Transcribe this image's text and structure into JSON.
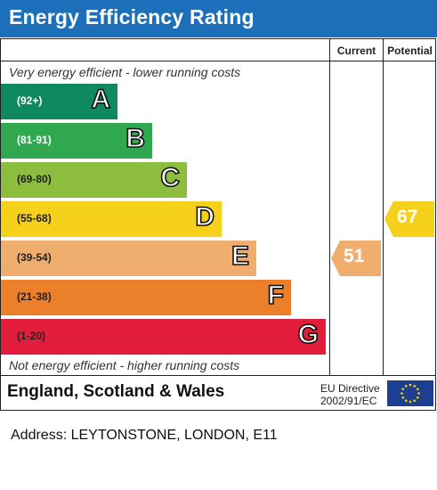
{
  "header": {
    "title": "Energy Efficiency Rating"
  },
  "columns": {
    "current": "Current",
    "potential": "Potential"
  },
  "notes": {
    "top": "Very energy efficient - lower running costs",
    "bottom": "Not energy efficient - higher running costs"
  },
  "chart_data": {
    "type": "bar",
    "title": "Energy Efficiency Rating",
    "bands": [
      {
        "letter": "A",
        "range": "(92+)",
        "color": "#0f8a5f",
        "text_color": "#ffffff"
      },
      {
        "letter": "B",
        "range": "(81-91)",
        "color": "#2fa84f",
        "text_color": "#ffffff"
      },
      {
        "letter": "C",
        "range": "(69-80)",
        "color": "#8cbd3f",
        "text_color": "#222222"
      },
      {
        "letter": "D",
        "range": "(55-68)",
        "color": "#f5d11c",
        "text_color": "#222222"
      },
      {
        "letter": "E",
        "range": "(39-54)",
        "color": "#f0ae6e",
        "text_color": "#222222"
      },
      {
        "letter": "F",
        "range": "(21-38)",
        "color": "#ec7f2a",
        "text_color": "#222222"
      },
      {
        "letter": "G",
        "range": "(1-20)",
        "color": "#e21d3c",
        "text_color": "#222222"
      }
    ],
    "current": {
      "value": 51,
      "band": "E",
      "color": "#f0ae6e"
    },
    "potential": {
      "value": 67,
      "band": "D",
      "color": "#f5d11c"
    }
  },
  "footer": {
    "region": "England, Scotland & Wales",
    "directive_line1": "EU Directive",
    "directive_line2": "2002/91/EC"
  },
  "address": "Address: LEYTONSTONE, LONDON, E11"
}
